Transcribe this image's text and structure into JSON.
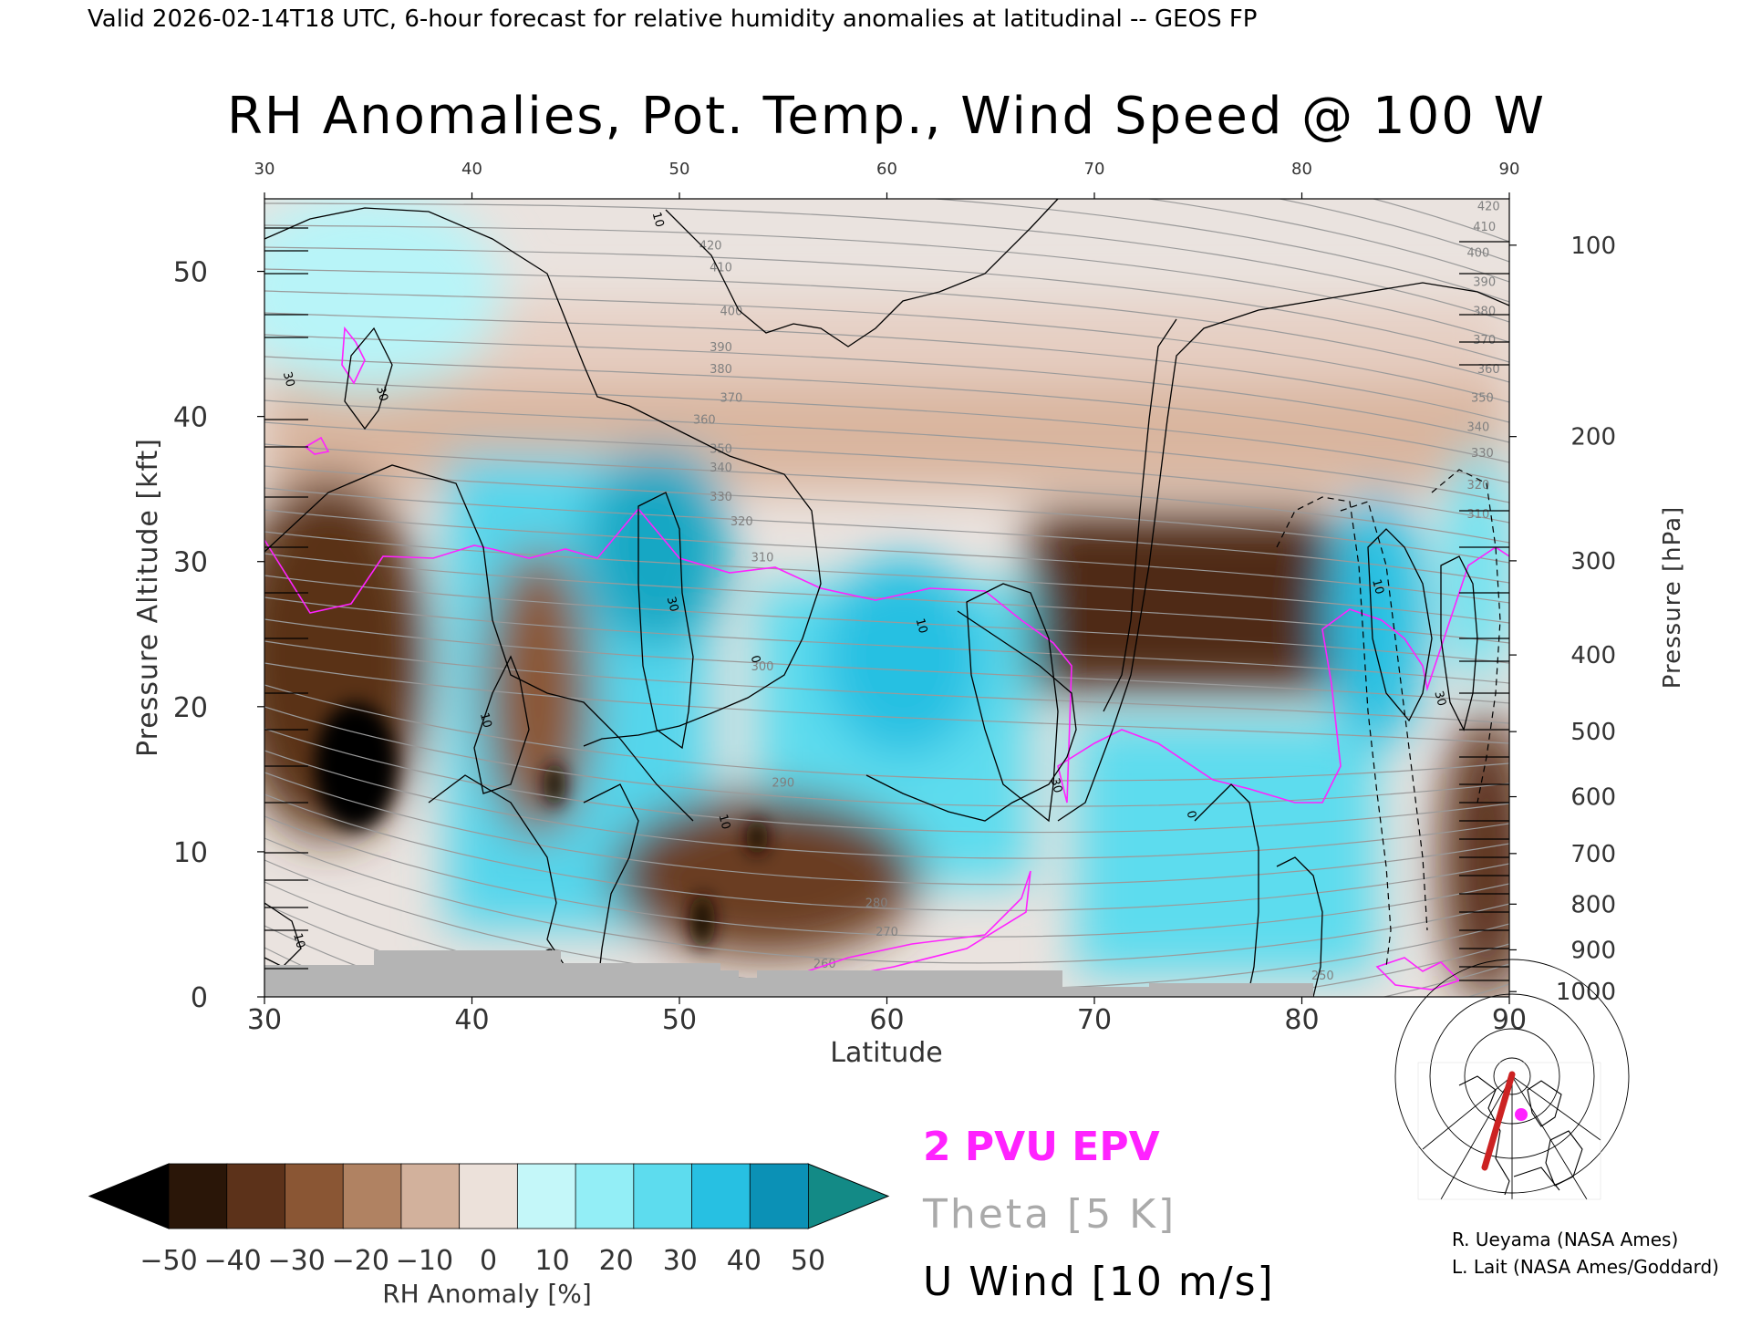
{
  "header": {
    "valid_line": "Valid 2026-02-14T18 UTC, 6-hour forecast for relative humidity anomalies at latitudinal -- GEOS FP",
    "title": "RH Anomalies, Pot. Temp., Wind Speed @ 100 W"
  },
  "chart_data": {
    "type": "heatmap",
    "xlabel": "Latitude",
    "ylabel_left": "Pressure Altitude [kft]",
    "ylabel_right": "Pressure [hPa]",
    "xlim": [
      30,
      90
    ],
    "ylim": [
      0,
      55
    ],
    "x_ticks": [
      "30",
      "40",
      "50",
      "60",
      "70",
      "80",
      "90"
    ],
    "x_ticks_top": [
      "30",
      "40",
      "50",
      "60",
      "70",
      "80",
      "90"
    ],
    "y_ticks_left": [
      "0",
      "10",
      "20",
      "30",
      "40",
      "50"
    ],
    "y_ticks_left_values": [
      0,
      10,
      20,
      30,
      40,
      50
    ],
    "y_ticks_right": [
      "100",
      "200",
      "300",
      "400",
      "500",
      "600",
      "700",
      "800",
      "900",
      "1000"
    ],
    "y_ticks_right_values": [
      100,
      200,
      300,
      400,
      500,
      600,
      700,
      800,
      900,
      1000
    ],
    "theta_labels": [
      {
        "text": "420",
        "lat": 51.5,
        "kft": 51.5
      },
      {
        "text": "410",
        "lat": 52,
        "kft": 50.0
      },
      {
        "text": "400",
        "lat": 52.5,
        "kft": 47.0
      },
      {
        "text": "390",
        "lat": 52,
        "kft": 44.5
      },
      {
        "text": "380",
        "lat": 52,
        "kft": 43.0
      },
      {
        "text": "370",
        "lat": 52.5,
        "kft": 41.0
      },
      {
        "text": "360",
        "lat": 51.2,
        "kft": 39.5
      },
      {
        "text": "350",
        "lat": 52,
        "kft": 37.5
      },
      {
        "text": "340",
        "lat": 52,
        "kft": 36.2
      },
      {
        "text": "330",
        "lat": 52,
        "kft": 34.2
      },
      {
        "text": "320",
        "lat": 53,
        "kft": 32.5
      },
      {
        "text": "310",
        "lat": 54,
        "kft": 30.0
      },
      {
        "text": "300",
        "lat": 54,
        "kft": 22.5
      },
      {
        "text": "290",
        "lat": 55,
        "kft": 14.5
      },
      {
        "text": "280",
        "lat": 59.5,
        "kft": 6.2
      },
      {
        "text": "270",
        "lat": 60,
        "kft": 4.2
      },
      {
        "text": "260",
        "lat": 57,
        "kft": 2.0
      },
      {
        "text": "250",
        "lat": 81,
        "kft": 1.2
      },
      {
        "text": "420",
        "lat": 89,
        "kft": 54.2
      },
      {
        "text": "410",
        "lat": 88.8,
        "kft": 52.8
      },
      {
        "text": "400",
        "lat": 88.5,
        "kft": 51.0
      },
      {
        "text": "390",
        "lat": 88.8,
        "kft": 49.0
      },
      {
        "text": "380",
        "lat": 88.8,
        "kft": 47.0
      },
      {
        "text": "370",
        "lat": 88.8,
        "kft": 45.0
      },
      {
        "text": "360",
        "lat": 89,
        "kft": 43.0
      },
      {
        "text": "350",
        "lat": 88.7,
        "kft": 41.0
      },
      {
        "text": "340",
        "lat": 88.5,
        "kft": 39.0
      },
      {
        "text": "330",
        "lat": 88.7,
        "kft": 37.2
      },
      {
        "text": "320",
        "lat": 88.5,
        "kft": 35.0
      },
      {
        "text": "310",
        "lat": 88.5,
        "kft": 33.0
      }
    ],
    "wind_labels": [
      {
        "text": "10",
        "lat": 48.8,
        "kft": 53.5
      },
      {
        "text": "30",
        "lat": 31,
        "kft": 42.5
      },
      {
        "text": "30",
        "lat": 35.5,
        "kft": 41.5
      },
      {
        "text": "10",
        "lat": 40.5,
        "kft": 19.0
      },
      {
        "text": "30",
        "lat": 49.5,
        "kft": 27.0
      },
      {
        "text": "0",
        "lat": 53.5,
        "kft": 23.2
      },
      {
        "text": "10",
        "lat": 52,
        "kft": 12.0
      },
      {
        "text": "10",
        "lat": 61.5,
        "kft": 25.5
      },
      {
        "text": "30",
        "lat": 68,
        "kft": 14.5
      },
      {
        "text": "10",
        "lat": 31.5,
        "kft": 3.8
      },
      {
        "text": "0",
        "lat": 43.5,
        "kft": 3.0
      },
      {
        "text": "0",
        "lat": 74.5,
        "kft": 12.5
      },
      {
        "text": "10",
        "lat": 83.5,
        "kft": 28.2
      },
      {
        "text": "30",
        "lat": 86.5,
        "kft": 20.5
      }
    ],
    "colorbar": {
      "label": "RH Anomaly [%]",
      "min": -50,
      "max": 50,
      "step": 10,
      "tick_labels": [
        "−50",
        "−40",
        "−30",
        "−20",
        "−10",
        "0",
        "10",
        "20",
        "30",
        "40",
        "50"
      ],
      "colors": [
        "#2a1608",
        "#5c321a",
        "#8a5634",
        "#b08262",
        "#d2b19c",
        "#ece1da",
        "#c4f7f9",
        "#93eef6",
        "#5ddcee",
        "#27c0e2",
        "#0b91b6"
      ],
      "under_color": "#000000",
      "over_color": "#138a86"
    },
    "legend": [
      {
        "text": "2 PVU EPV",
        "color": "#ff22ff"
      },
      {
        "text": "Theta [5 K]",
        "color": "#aaaaaa"
      },
      {
        "text": "U Wind [10 m/s]",
        "color": "#000000"
      }
    ],
    "grid": false
  },
  "credits": [
    "R. Ueyama (NASA Ames)",
    "L. Lait (NASA Ames/Goddard)"
  ],
  "colors": {
    "epv": "#ff22ff",
    "theta": "#9a9a9a",
    "wind": "#000000",
    "terrain": "#b4b4b4"
  }
}
